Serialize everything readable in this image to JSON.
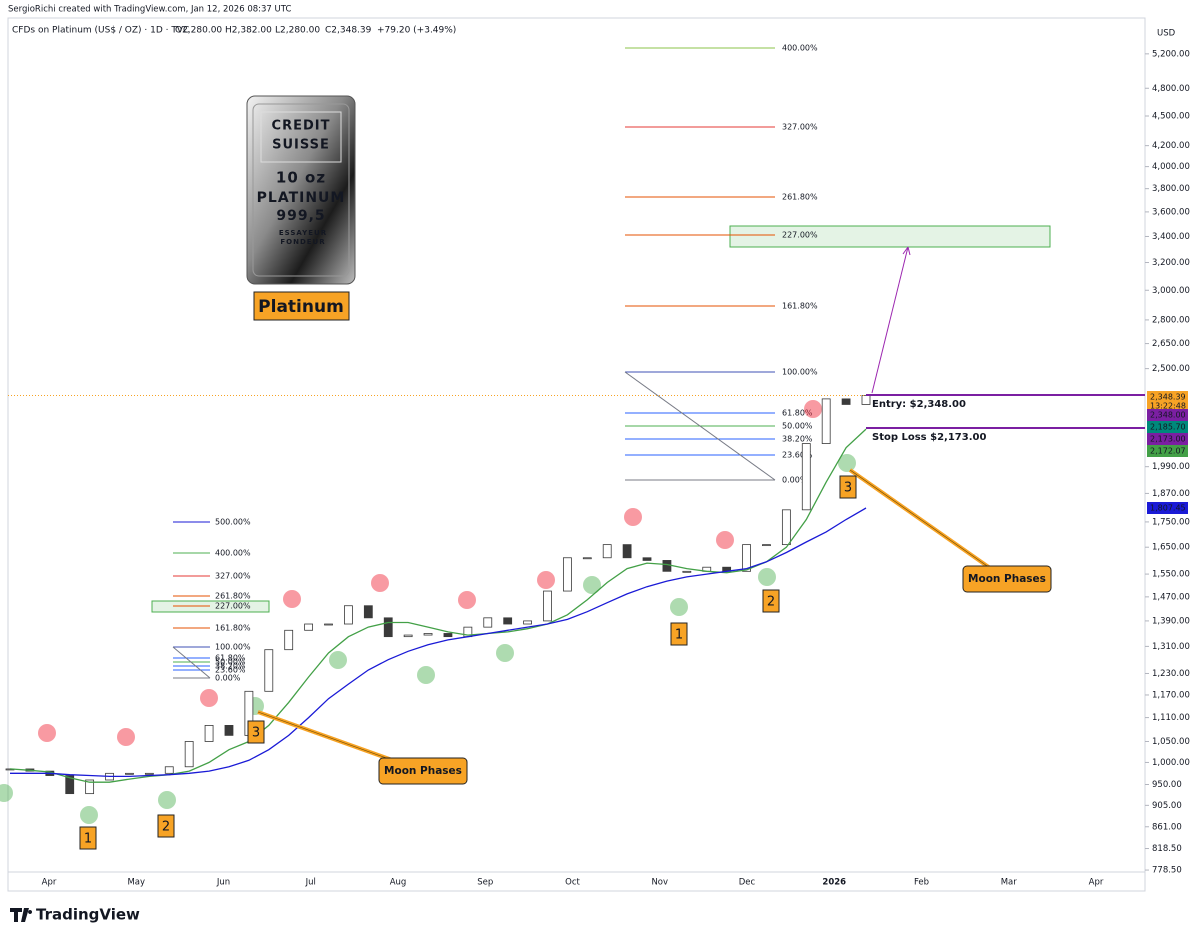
{
  "header": {
    "credit": "SergioRichi created with TradingView.com, Jan 12, 2026 08:37 UTC"
  },
  "chart_data": {
    "type": "candlestick",
    "title": "CFDs on Platinum (US$ / OZ) · 1D · TVC",
    "ohlc": [
      "O2,280.00",
      "H2,382.00",
      "L2,280.00",
      "C2,348.39"
    ],
    "change": "+79.20 (+3.49%)",
    "currency": "USD",
    "categories": [
      "Apr",
      "May",
      "Jun",
      "Jul",
      "Aug",
      "Sep",
      "Oct",
      "Nov",
      "Dec",
      "2026",
      "Feb",
      "Mar",
      "Apr"
    ],
    "close": [
      985,
      980,
      970,
      930,
      960,
      975,
      975,
      975,
      990,
      1050,
      1090,
      1065,
      1180,
      1300,
      1360,
      1380,
      1380,
      1440,
      1400,
      1340,
      1345,
      1350,
      1340,
      1370,
      1400,
      1380,
      1390,
      1490,
      1610,
      1610,
      1660,
      1610,
      1600,
      1560,
      1560,
      1575,
      1560,
      1660,
      1660,
      1800,
      2100,
      2330,
      2300,
      2348.39
    ],
    "up_color": "#ffffff",
    "down_color": "#3a3a3a",
    "moving_averages": [
      {
        "color": "#43a047",
        "values": [
          985,
          982,
          978,
          965,
          955,
          955,
          962,
          968,
          972,
          980,
          1000,
          1030,
          1050,
          1090,
          1150,
          1220,
          1290,
          1340,
          1370,
          1385,
          1385,
          1370,
          1355,
          1345,
          1350,
          1355,
          1365,
          1380,
          1410,
          1460,
          1520,
          1570,
          1590,
          1585,
          1570,
          1560,
          1555,
          1565,
          1595,
          1650,
          1760,
          1920,
          2080,
          2172.07
        ]
      },
      {
        "color": "#1a1ad6",
        "values": [
          975,
          975,
          975,
          972,
          970,
          968,
          968,
          970,
          972,
          975,
          980,
          990,
          1005,
          1030,
          1065,
          1110,
          1160,
          1200,
          1240,
          1270,
          1295,
          1315,
          1330,
          1340,
          1350,
          1360,
          1370,
          1380,
          1395,
          1420,
          1450,
          1480,
          1505,
          1525,
          1540,
          1550,
          1560,
          1570,
          1595,
          1630,
          1670,
          1710,
          1760,
          1807.45
        ]
      }
    ],
    "ylim": [
      775,
      5600
    ],
    "log_scale": true,
    "yticks": [
      {
        "value": 778.5,
        "label": "778.50"
      },
      {
        "value": 818.5,
        "label": "818.50"
      },
      {
        "value": 861,
        "label": "861.00"
      },
      {
        "value": 905,
        "label": "905.00"
      },
      {
        "value": 950,
        "label": "950.00"
      },
      {
        "value": 1000,
        "label": "1,000.00"
      },
      {
        "value": 1050,
        "label": "1,050.00"
      },
      {
        "value": 1110,
        "label": "1,110.00"
      },
      {
        "value": 1170,
        "label": "1,170.00"
      },
      {
        "value": 1230,
        "label": "1,230.00"
      },
      {
        "value": 1310,
        "label": "1,310.00"
      },
      {
        "value": 1390,
        "label": "1,390.00"
      },
      {
        "value": 1470,
        "label": "1,470.00"
      },
      {
        "value": 1550,
        "label": "1,550.00"
      },
      {
        "value": 1650,
        "label": "1,650.00"
      },
      {
        "value": 1750,
        "label": "1,750.00"
      },
      {
        "value": 1870,
        "label": "1,870.00"
      },
      {
        "value": 1990,
        "label": "1,990.00"
      },
      {
        "value": 2500,
        "label": "2,500.00"
      },
      {
        "value": 2650,
        "label": "2,650.00"
      },
      {
        "value": 2800,
        "label": "2,800.00"
      },
      {
        "value": 3000,
        "label": "3,000.00"
      },
      {
        "value": 3200,
        "label": "3,200.00"
      },
      {
        "value": 3400,
        "label": "3,400.00"
      },
      {
        "value": 3600,
        "label": "3,600.00"
      },
      {
        "value": 3800,
        "label": "3,800.00"
      },
      {
        "value": 4000,
        "label": "4,000.00"
      },
      {
        "value": 4200,
        "label": "4,200.00"
      },
      {
        "value": 4500,
        "label": "4,500.00"
      },
      {
        "value": 4800,
        "label": "4,800.00"
      },
      {
        "value": 5200,
        "label": "5,200.00"
      }
    ],
    "price_tags": [
      {
        "label": "2,348.39",
        "color": "#f7a325"
      },
      {
        "label": "2,348.00",
        "color": "#7b1fa2"
      },
      {
        "label": "2,185.70",
        "color": "#00897b"
      },
      {
        "label": "2,173.00",
        "color": "#7b1fa2"
      },
      {
        "label": "2,172.07",
        "color": "#43a047"
      },
      {
        "label": "1,807.45",
        "color": "#1a1ad6"
      }
    ],
    "countdown": "13:22:48",
    "annotations": {
      "entry": "Entry: $2,348.00",
      "stop_loss": "Stop Loss $2,173.00",
      "moon_phases": [
        "Moon Phases",
        "Moon Phases"
      ],
      "phase_numbers": [
        "1",
        "2",
        "3",
        "1",
        "2",
        "3"
      ],
      "product": "Platinum",
      "bar_text": [
        "CREDIT",
        "SUISSE",
        "10 oz",
        "PLATINUM",
        "999,5",
        "ESSAYEUR",
        "FONDEUR"
      ]
    },
    "fib_large": [
      "400.00%",
      "327.00%",
      "261.80%",
      "227.00%",
      "161.80%",
      "100.00%",
      "61.80%",
      "50.00%",
      "38.20%",
      "23.60%",
      "0.00%"
    ],
    "fib_small": [
      "500.00%",
      "400.00%",
      "327.00%",
      "261.80%",
      "227.00%",
      "161.80%",
      "100.00%",
      "61.80%",
      "50.00%",
      "38.20%",
      "23.60%",
      "0.00%"
    ]
  },
  "footer": {
    "brand": "TradingView"
  }
}
